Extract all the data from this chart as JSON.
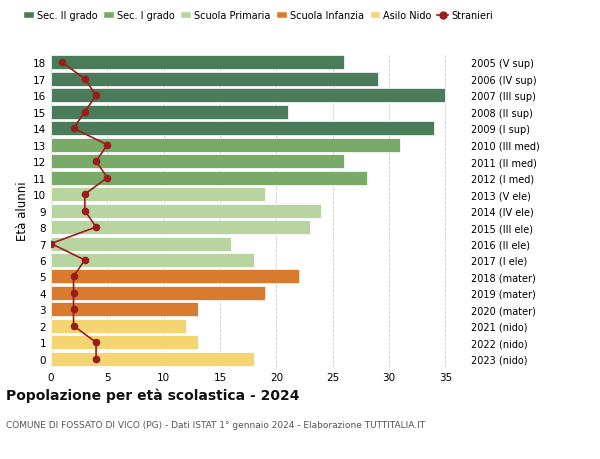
{
  "ages": [
    18,
    17,
    16,
    15,
    14,
    13,
    12,
    11,
    10,
    9,
    8,
    7,
    6,
    5,
    4,
    3,
    2,
    1,
    0
  ],
  "right_labels": [
    "2005 (V sup)",
    "2006 (IV sup)",
    "2007 (III sup)",
    "2008 (II sup)",
    "2009 (I sup)",
    "2010 (III med)",
    "2011 (II med)",
    "2012 (I med)",
    "2013 (V ele)",
    "2014 (IV ele)",
    "2015 (III ele)",
    "2016 (II ele)",
    "2017 (I ele)",
    "2018 (mater)",
    "2019 (mater)",
    "2020 (mater)",
    "2021 (nido)",
    "2022 (nido)",
    "2023 (nido)"
  ],
  "bar_values": [
    26,
    29,
    35,
    21,
    34,
    31,
    26,
    28,
    19,
    24,
    23,
    16,
    18,
    22,
    19,
    13,
    12,
    13,
    18
  ],
  "bar_colors": [
    "#4a7c59",
    "#4a7c59",
    "#4a7c59",
    "#4a7c59",
    "#4a7c59",
    "#7aaa6a",
    "#7aaa6a",
    "#7aaa6a",
    "#b8d4a0",
    "#b8d4a0",
    "#b8d4a0",
    "#b8d4a0",
    "#b8d4a0",
    "#d97b2e",
    "#d97b2e",
    "#d97b2e",
    "#f5d572",
    "#f5d572",
    "#f5d572"
  ],
  "stranieri_values": [
    1,
    3,
    4,
    3,
    2,
    5,
    4,
    5,
    3,
    3,
    4,
    0,
    3,
    2,
    2,
    2,
    2,
    4,
    4
  ],
  "stranieri_color": "#9b1c1c",
  "legend_labels": [
    "Sec. II grado",
    "Sec. I grado",
    "Scuola Primaria",
    "Scuola Infanzia",
    "Asilo Nido",
    "Stranieri"
  ],
  "legend_colors": [
    "#4a7c59",
    "#7aaa6a",
    "#b8d4a0",
    "#d97b2e",
    "#f5d572",
    "#9b1c1c"
  ],
  "ylabel_left": "Età alunni",
  "title": "Popolazione per età scolastica - 2024",
  "subtitle": "COMUNE DI FOSSATO DI VICO (PG) - Dati ISTAT 1° gennaio 2024 - Elaborazione TUTTITALIA.IT",
  "xlim": [
    0,
    37
  ],
  "background_color": "#ffffff",
  "grid_color": "#cccccc"
}
